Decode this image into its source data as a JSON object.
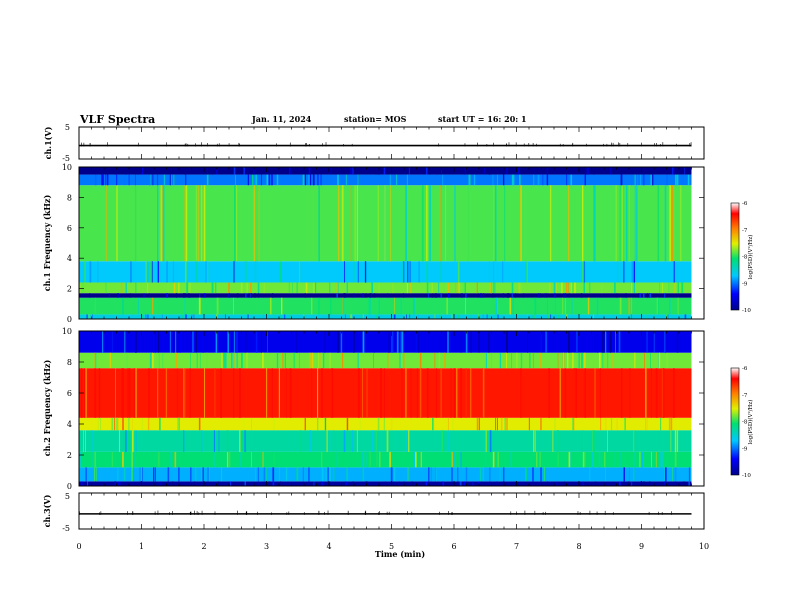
{
  "header": {
    "title": "VLF Spectra",
    "date": "Jan. 11, 2024",
    "station": "station= MOS",
    "start": "start  UT =   16: 20: 1"
  },
  "chart_data": [
    {
      "type": "line",
      "title": "",
      "ylabel": "ch.1(V)",
      "xlim": [
        0,
        10
      ],
      "ylim": [
        -5,
        5
      ],
      "y_ticks": [
        "5",
        "-5"
      ],
      "series": [
        {
          "x": [
            0,
            9.8
          ],
          "values": [
            -0.8,
            -0.8
          ]
        }
      ]
    },
    {
      "type": "heatmap",
      "ylabel": "ch.1 Frequency (kHz)",
      "xlim": [
        0,
        10
      ],
      "ylim": [
        0,
        10
      ],
      "y_ticks": [
        "0",
        "2",
        "4",
        "6",
        "8",
        "10"
      ],
      "colorbar": {
        "label": "log(PSD)(V²/Hz)",
        "ticks": [
          "-6",
          "-7",
          "-8",
          "-9",
          "-10"
        ],
        "range": [
          -10,
          -6
        ]
      },
      "bands": [
        {
          "fmin": 0.0,
          "fmax": 0.3,
          "log_psd": -8.6
        },
        {
          "fmin": 0.3,
          "fmax": 1.4,
          "log_psd": -8.0
        },
        {
          "fmin": 1.4,
          "fmax": 1.7,
          "log_psd": -10.0
        },
        {
          "fmin": 1.7,
          "fmax": 2.4,
          "log_psd": -7.8
        },
        {
          "fmin": 2.4,
          "fmax": 3.8,
          "log_psd": -8.7
        },
        {
          "fmin": 3.8,
          "fmax": 8.8,
          "log_psd": -7.9
        },
        {
          "fmin": 8.8,
          "fmax": 9.5,
          "log_psd": -9.0
        },
        {
          "fmin": 9.5,
          "fmax": 10.0,
          "log_psd": -10.0
        }
      ]
    },
    {
      "type": "heatmap",
      "ylabel": "ch.2 Frequency (kHz)",
      "xlim": [
        0,
        10
      ],
      "ylim": [
        0,
        10
      ],
      "y_ticks": [
        "0",
        "2",
        "4",
        "6",
        "8",
        "10"
      ],
      "colorbar": {
        "label": "log(PSD)(V²/Hz)",
        "ticks": [
          "-6",
          "-7",
          "-8",
          "-9",
          "-10"
        ],
        "range": [
          -10,
          -6
        ]
      },
      "bands": [
        {
          "fmin": 0.0,
          "fmax": 0.3,
          "log_psd": -9.9
        },
        {
          "fmin": 0.3,
          "fmax": 1.2,
          "log_psd": -8.8
        },
        {
          "fmin": 1.2,
          "fmax": 2.2,
          "log_psd": -8.1
        },
        {
          "fmin": 2.2,
          "fmax": 3.6,
          "log_psd": -8.3
        },
        {
          "fmin": 3.6,
          "fmax": 4.4,
          "log_psd": -7.5
        },
        {
          "fmin": 4.4,
          "fmax": 7.6,
          "log_psd": -6.5
        },
        {
          "fmin": 7.6,
          "fmax": 8.6,
          "log_psd": -7.8
        },
        {
          "fmin": 8.6,
          "fmax": 10.0,
          "log_psd": -9.5
        }
      ]
    },
    {
      "type": "line",
      "ylabel": "ch.3(V)",
      "xlim": [
        0,
        10
      ],
      "ylim": [
        -5,
        5
      ],
      "y_ticks": [
        "5",
        "-5"
      ],
      "xlabel": "Time (min)",
      "x_ticks": [
        "0",
        "1",
        "2",
        "3",
        "4",
        "5",
        "6",
        "7",
        "8",
        "9",
        "10"
      ],
      "series": [
        {
          "x": [
            0,
            9.8
          ],
          "values": [
            -0.8,
            -0.8
          ]
        }
      ]
    }
  ],
  "colors": {
    "colormap": [
      "#00008b",
      "#0000ff",
      "#00c8ff",
      "#00e070",
      "#e0f000",
      "#ff8000",
      "#ff0000",
      "#ffffff"
    ]
  }
}
